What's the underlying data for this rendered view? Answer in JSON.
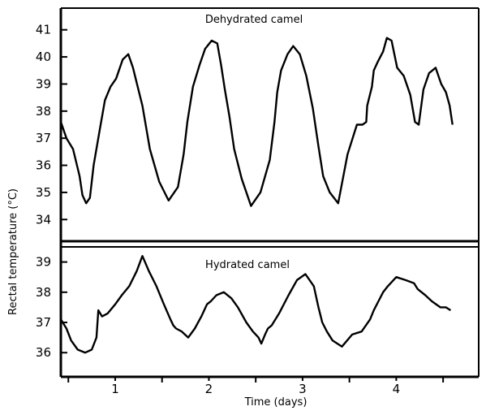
{
  "chart_data": {
    "type": "line",
    "ylabel": "Rectal temperature (°C)",
    "xlabel": "Time (days)",
    "x_ticks": [
      1,
      2,
      3,
      4
    ],
    "xlim": [
      0.42,
      4.88
    ],
    "panels": [
      {
        "id": "top",
        "title": "Dehydrated camel",
        "ylim": [
          33.2,
          41.8
        ],
        "y_ticks": [
          34,
          35,
          36,
          37,
          38,
          39,
          40,
          41
        ],
        "series": {
          "x": [
            0.42,
            0.48,
            0.55,
            0.62,
            0.65,
            0.69,
            0.73,
            0.77,
            0.83,
            0.89,
            0.95,
            1.01,
            1.08,
            1.14,
            1.19,
            1.24,
            1.29,
            1.37,
            1.47,
            1.57,
            1.67,
            1.73,
            1.77,
            1.83,
            1.9,
            1.96,
            2.03,
            2.09,
            2.13,
            2.17,
            2.22,
            2.27,
            2.35,
            2.45,
            2.55,
            2.65,
            2.7,
            2.73,
            2.77,
            2.84,
            2.9,
            2.97,
            3.04,
            3.11,
            3.17,
            3.22,
            3.29,
            3.38,
            3.48,
            3.58,
            3.64,
            3.68,
            3.69,
            3.74,
            3.76,
            3.8,
            3.86,
            3.9,
            3.95,
            4.01,
            4.08,
            4.15,
            4.2,
            4.24,
            4.29,
            4.35,
            4.42,
            4.48,
            4.53,
            4.57,
            4.6
          ],
          "y": [
            37.6,
            37.0,
            36.6,
            35.6,
            34.9,
            34.6,
            34.8,
            36.0,
            37.2,
            38.4,
            38.9,
            39.2,
            39.9,
            40.1,
            39.6,
            38.9,
            38.2,
            36.6,
            35.4,
            34.7,
            35.2,
            36.4,
            37.6,
            38.9,
            39.7,
            40.3,
            40.6,
            40.5,
            39.7,
            38.8,
            37.8,
            36.6,
            35.5,
            34.5,
            35.0,
            36.2,
            37.6,
            38.7,
            39.5,
            40.1,
            40.4,
            40.1,
            39.3,
            38.1,
            36.7,
            35.6,
            35.0,
            34.6,
            36.4,
            37.5,
            37.5,
            37.6,
            38.2,
            38.9,
            39.5,
            39.8,
            40.2,
            40.7,
            40.6,
            39.6,
            39.3,
            38.6,
            37.6,
            37.5,
            38.8,
            39.4,
            39.6,
            39.0,
            38.7,
            38.2,
            37.5
          ]
        }
      },
      {
        "id": "bottom",
        "title": "Hydrated camel",
        "ylim": [
          35.2,
          39.5
        ],
        "y_ticks": [
          36,
          37,
          38,
          39
        ],
        "series": {
          "x": [
            0.42,
            0.48,
            0.53,
            0.6,
            0.68,
            0.75,
            0.8,
            0.82,
            0.84,
            0.86,
            0.92,
            1.0,
            1.07,
            1.15,
            1.23,
            1.29,
            1.36,
            1.44,
            1.52,
            1.59,
            1.62,
            1.65,
            1.71,
            1.78,
            1.85,
            1.92,
            1.98,
            2.02,
            2.08,
            2.16,
            2.24,
            2.31,
            2.4,
            2.47,
            2.53,
            2.56,
            2.6,
            2.63,
            2.67,
            2.75,
            2.85,
            2.94,
            3.03,
            3.12,
            3.17,
            3.21,
            3.26,
            3.32,
            3.42,
            3.53,
            3.63,
            3.72,
            3.76,
            3.81,
            3.86,
            3.91,
            4.0,
            4.1,
            4.19,
            4.23,
            4.31,
            4.38,
            4.47,
            4.53,
            4.58
          ],
          "y": [
            37.1,
            36.8,
            36.4,
            36.1,
            36.0,
            36.1,
            36.5,
            37.4,
            37.3,
            37.2,
            37.3,
            37.6,
            37.9,
            38.2,
            38.7,
            39.2,
            38.7,
            38.2,
            37.6,
            37.1,
            36.9,
            36.8,
            36.7,
            36.5,
            36.8,
            37.2,
            37.6,
            37.7,
            37.9,
            38.0,
            37.8,
            37.5,
            37.0,
            36.7,
            36.5,
            36.3,
            36.6,
            36.8,
            36.9,
            37.3,
            37.9,
            38.4,
            38.6,
            38.2,
            37.5,
            37.0,
            36.7,
            36.4,
            36.2,
            36.6,
            36.7,
            37.1,
            37.4,
            37.7,
            38.0,
            38.2,
            38.5,
            38.4,
            38.3,
            38.1,
            37.9,
            37.7,
            37.5,
            37.5,
            37.4
          ]
        }
      }
    ]
  }
}
